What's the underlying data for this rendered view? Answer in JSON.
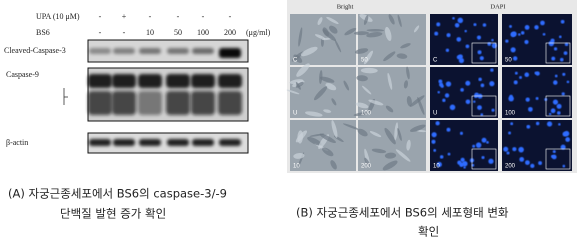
{
  "blot": {
    "conditions": [
      {
        "label": "UPA (10 μM)",
        "values": [
          "-",
          "+",
          "-",
          "-",
          "-",
          "-"
        ]
      },
      {
        "label": "BS6",
        "values": [
          "-",
          "-",
          "10",
          "50",
          "100",
          "200"
        ],
        "unit": "(μg/ml)"
      }
    ],
    "proteins": [
      "Cleaved-Caspase-3",
      "Caspase-9",
      "β-actin"
    ]
  },
  "microscopy": {
    "columns": [
      "Bright",
      "DAPI"
    ],
    "panels": [
      [
        "C",
        "50",
        "C",
        "50"
      ],
      [
        "U",
        "100",
        "U",
        "100"
      ],
      [
        "10",
        "200",
        "10",
        "200"
      ]
    ]
  },
  "captions": [
    [
      "(A) 자궁근종세포에서 BS6의 caspase-3/-9",
      "단백질 발현 증가 확인"
    ],
    [
      "(B) 자궁근종세포에서 BS6의 세포형태 변화",
      "확인"
    ]
  ]
}
